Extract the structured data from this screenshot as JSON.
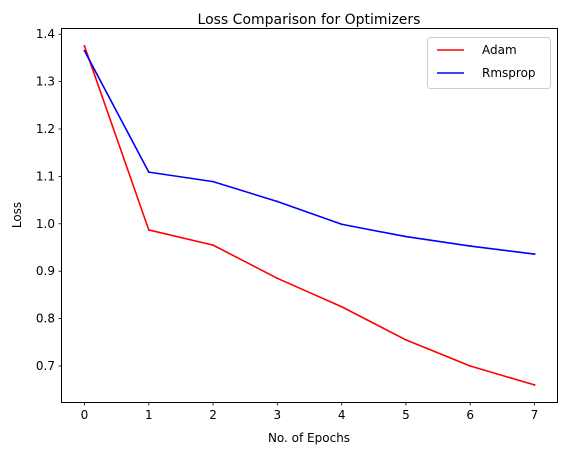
{
  "chart_data": {
    "type": "line",
    "title": "Loss Comparison for Optimizers",
    "xlabel": "No. of Epochs",
    "ylabel": "Loss",
    "x": [
      0,
      1,
      2,
      3,
      4,
      5,
      6,
      7
    ],
    "series": [
      {
        "name": "Adam",
        "color": "#ff0000",
        "values": [
          1.375,
          0.987,
          0.955,
          0.885,
          0.825,
          0.755,
          0.7,
          0.66
        ]
      },
      {
        "name": "Rmsprop",
        "color": "#0000ff",
        "values": [
          1.365,
          1.109,
          1.089,
          1.047,
          0.999,
          0.973,
          0.953,
          0.936
        ]
      }
    ],
    "xlim": [
      -0.35,
      7.35
    ],
    "ylim": [
      0.624,
      1.411
    ],
    "xticks": [
      "0",
      "1",
      "2",
      "3",
      "4",
      "5",
      "6",
      "7"
    ],
    "yticks": [
      "0.7",
      "0.8",
      "0.9",
      "1.0",
      "1.1",
      "1.2",
      "1.3",
      "1.4"
    ],
    "grid": false,
    "legend_position": "top-right"
  }
}
